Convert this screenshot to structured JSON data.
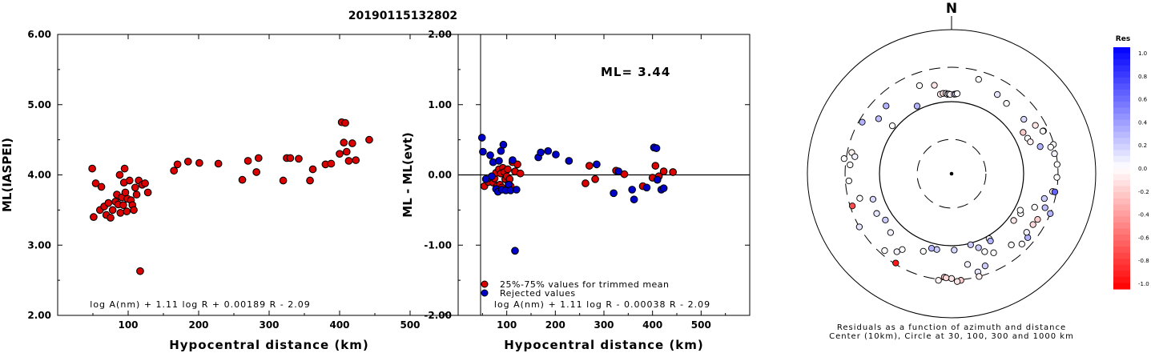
{
  "event_id": "20190115132802",
  "chart_data": [
    {
      "type": "scatter",
      "title": "",
      "xlabel": "Hypocentral distance (km)",
      "ylabel": "ML(IASPEI)",
      "xlim": [
        0,
        600
      ],
      "ylim": [
        2.0,
        6.0
      ],
      "xticks": [
        "100",
        "200",
        "300",
        "400",
        "500"
      ],
      "yticks": [
        "2.00",
        "3.00",
        "4.00",
        "5.00",
        "6.00"
      ],
      "formula": "log A(nm) + 1.11 log R + 0.00189 R - 2.09",
      "series": [
        {
          "color": "#dd0000",
          "points": [
            [
              49,
              4.09
            ],
            [
              51,
              3.4
            ],
            [
              54,
              3.88
            ],
            [
              60,
              3.5
            ],
            [
              62,
              3.83
            ],
            [
              66,
              3.55
            ],
            [
              69,
              3.43
            ],
            [
              72,
              3.6
            ],
            [
              75,
              3.39
            ],
            [
              78,
              3.5
            ],
            [
              82,
              3.62
            ],
            [
              84,
              3.72
            ],
            [
              86,
              3.58
            ],
            [
              88,
              4.0
            ],
            [
              89,
              3.46
            ],
            [
              91,
              3.68
            ],
            [
              93,
              3.57
            ],
            [
              94,
              3.89
            ],
            [
              95,
              4.09
            ],
            [
              96,
              3.75
            ],
            [
              98,
              3.48
            ],
            [
              99,
              3.66
            ],
            [
              102,
              3.92
            ],
            [
              104,
              3.64
            ],
            [
              106,
              3.57
            ],
            [
              108,
              3.5
            ],
            [
              110,
              3.82
            ],
            [
              112,
              3.72
            ],
            [
              115,
              3.92
            ],
            [
              117,
              2.63
            ],
            [
              120,
              3.86
            ],
            [
              124,
              3.88
            ],
            [
              128,
              3.75
            ],
            [
              165,
              4.06
            ],
            [
              170,
              4.15
            ],
            [
              185,
              4.19
            ],
            [
              201,
              4.17
            ],
            [
              228,
              4.16
            ],
            [
              262,
              3.93
            ],
            [
              270,
              4.2
            ],
            [
              282,
              4.04
            ],
            [
              285,
              4.24
            ],
            [
              320,
              3.92
            ],
            [
              325,
              4.24
            ],
            [
              330,
              4.24
            ],
            [
              342,
              4.23
            ],
            [
              358,
              3.92
            ],
            [
              362,
              4.08
            ],
            [
              380,
              4.15
            ],
            [
              388,
              4.16
            ],
            [
              400,
              4.3
            ],
            [
              403,
              4.75
            ],
            [
              406,
              4.46
            ],
            [
              408,
              4.74
            ],
            [
              410,
              4.33
            ],
            [
              413,
              4.2
            ],
            [
              418,
              4.45
            ],
            [
              423,
              4.21
            ],
            [
              442,
              4.5
            ]
          ]
        }
      ]
    },
    {
      "type": "scatter",
      "title": "",
      "xlabel": "Hypocentral distance (km)",
      "ylabel": "ML - ML(evt)",
      "xlim": [
        0,
        600
      ],
      "ylim": [
        -2.0,
        2.0
      ],
      "xticks": [
        "100",
        "200",
        "300",
        "400",
        "500"
      ],
      "yticks": [
        "-2.00",
        "-1.00",
        "0.00",
        "1.00",
        "2.00"
      ],
      "annotation": "ML= 3.44",
      "formula": "log A(nm) + 1.11 log R - 0.00038 R - 2.09",
      "legend": [
        {
          "label": "25%-75% values for trimmed mean",
          "color": "#dd0000"
        },
        {
          "label": "Rejected values",
          "color": "#0000cc"
        }
      ],
      "series": [
        {
          "name": "25%-75% values for trimmed mean",
          "color": "#dd0000",
          "points": [
            [
              54,
              -0.16
            ],
            [
              62,
              -0.1
            ],
            [
              68,
              -0.05
            ],
            [
              72,
              -0.11
            ],
            [
              75,
              -0.05
            ],
            [
              78,
              0.03
            ],
            [
              80,
              -0.16
            ],
            [
              84,
              0.08
            ],
            [
              86,
              -0.14
            ],
            [
              88,
              0.02
            ],
            [
              90,
              -0.18
            ],
            [
              92,
              0.1
            ],
            [
              95,
              0.04
            ],
            [
              97,
              -0.06
            ],
            [
              100,
              -0.02
            ],
            [
              102,
              0.08
            ],
            [
              104,
              -0.12
            ],
            [
              106,
              -0.06
            ],
            [
              108,
              -0.16
            ],
            [
              112,
              0.18
            ],
            [
              117,
              0.05
            ],
            [
              122,
              0.15
            ],
            [
              128,
              0.02
            ],
            [
              262,
              -0.12
            ],
            [
              270,
              0.13
            ],
            [
              282,
              -0.06
            ],
            [
              325,
              0.06
            ],
            [
              342,
              0.01
            ],
            [
              380,
              -0.16
            ],
            [
              400,
              -0.04
            ],
            [
              406,
              0.13
            ],
            [
              413,
              -0.02
            ],
            [
              423,
              0.05
            ],
            [
              442,
              0.04
            ]
          ]
        },
        {
          "name": "Rejected values",
          "color": "#0000cc",
          "points": [
            [
              49,
              0.53
            ],
            [
              51,
              0.33
            ],
            [
              57,
              -0.06
            ],
            [
              66,
              0.28
            ],
            [
              69,
              -0.02
            ],
            [
              72,
              0.18
            ],
            [
              78,
              -0.2
            ],
            [
              82,
              -0.24
            ],
            [
              84,
              0.2
            ],
            [
              88,
              0.34
            ],
            [
              90,
              -0.21
            ],
            [
              93,
              0.43
            ],
            [
              98,
              -0.22
            ],
            [
              104,
              -0.14
            ],
            [
              108,
              -0.22
            ],
            [
              112,
              0.21
            ],
            [
              117,
              -1.08
            ],
            [
              120,
              -0.21
            ],
            [
              165,
              0.25
            ],
            [
              170,
              0.32
            ],
            [
              185,
              0.34
            ],
            [
              201,
              0.29
            ],
            [
              228,
              0.2
            ],
            [
              285,
              0.15
            ],
            [
              320,
              -0.26
            ],
            [
              330,
              0.05
            ],
            [
              358,
              -0.21
            ],
            [
              362,
              -0.35
            ],
            [
              388,
              -0.18
            ],
            [
              403,
              0.39
            ],
            [
              408,
              0.38
            ],
            [
              410,
              -0.07
            ],
            [
              418,
              -0.21
            ],
            [
              423,
              -0.19
            ]
          ]
        }
      ]
    },
    {
      "type": "scatter",
      "subtype": "polar",
      "title": "",
      "north_label": "N",
      "caption1": "Residuals as a function of azimuth and distance",
      "caption2": "Center (10km), Circle at 30, 100, 300 and 1000 km",
      "rings_km": [
        10,
        30,
        100,
        300,
        1000
      ],
      "colorbar": {
        "title": "Res",
        "ticks": [
          "1.0",
          "0.8",
          "0.6",
          "0.4",
          "0.2",
          "0.0",
          "-0.2",
          "-0.4",
          "-0.6",
          "-0.8",
          "-1.0"
        ],
        "positive_color": "#0000ff",
        "zero_color": "#ffffff",
        "negative_color": "#ff0000"
      },
      "points_az_km_res": [
        [
          -20,
          200,
          0.0
        ],
        [
          -11,
          178,
          -0.1
        ],
        [
          -8,
          130,
          -0.1
        ],
        [
          -6,
          132,
          -0.1
        ],
        [
          -4,
          131,
          0.0
        ],
        [
          -3,
          127,
          0.0
        ],
        [
          -2,
          128,
          0.1
        ],
        [
          -1,
          126,
          -0.05
        ],
        [
          2,
          127,
          0.15
        ],
        [
          3,
          128,
          0.1
        ],
        [
          4,
          130,
          0.0
        ],
        [
          16,
          230,
          0.0
        ],
        [
          30,
          186,
          0.1
        ],
        [
          38,
          173,
          0.0
        ],
        [
          53,
          180,
          0.15
        ],
        [
          65,
          255,
          0.4
        ],
        [
          74,
          295,
          0.0
        ],
        [
          75,
          265,
          0.0
        ],
        [
          79,
          285,
          0.05
        ],
        [
          -27,
          113,
          0.3
        ],
        [
          -51,
          114,
          0.0
        ],
        [
          -53,
          185,
          0.25
        ],
        [
          -78,
          260,
          -0.05
        ],
        [
          -82,
          320,
          0.0
        ],
        [
          -85,
          259,
          0.0
        ],
        [
          -94,
          268,
          0.0
        ],
        [
          -105,
          208,
          0.0
        ],
        [
          -108,
          280,
          -0.7
        ],
        [
          -139,
          260,
          0.0
        ],
        [
          -145,
          210,
          0.05
        ],
        [
          -147,
          180,
          0.0
        ],
        [
          -148,
          290,
          -0.9
        ],
        [
          -160,
          140,
          0.0
        ],
        [
          -169,
          118,
          0.2
        ],
        [
          -173,
          310,
          -0.05
        ],
        [
          -176,
          275,
          -0.2
        ],
        [
          -180,
          285,
          -0.1
        ],
        [
          -177,
          280,
          -0.15
        ],
        [
          -185,
          306,
          -0.2
        ],
        [
          -183,
          315,
          -0.1
        ],
        [
          -195,
          258,
          0.1
        ],
        [
          -195,
          300,
          -0.05
        ],
        [
          -203,
          150,
          0.0
        ],
        [
          -208,
          175,
          0.0
        ],
        [
          -210,
          110,
          0.05
        ],
        [
          -233,
          120,
          -0.1
        ],
        [
          -240,
          128,
          0.0
        ],
        [
          -242,
          120,
          0.0
        ],
        [
          -255,
          215,
          0.2
        ],
        [
          -248,
          175,
          0.0
        ],
        [
          -287,
          193,
          0.3
        ],
        [
          -295,
          250,
          0.0
        ],
        [
          -300,
          220,
          -0.1
        ],
        [
          -300,
          140,
          -0.2
        ],
        [
          -295,
          146,
          0.0
        ],
        [
          -292,
          151,
          -0.05
        ],
        [
          -108,
          140,
          0.15
        ],
        [
          -125,
          132,
          0.2
        ],
        [
          -118,
          150,
          0.1
        ],
        [
          -200,
          124,
          0.2
        ],
        [
          -134,
          150,
          0.05
        ],
        [
          -44,
          203,
          0.3
        ],
        [
          -60,
          270,
          0.3
        ],
        [
          150,
          120,
          0.3
        ],
        [
          165,
          105,
          0.2
        ],
        [
          178,
          115,
          0.15
        ],
        [
          170,
          190,
          0.05
        ],
        [
          195,
          118,
          0.3
        ],
        [
          160,
          230,
          0.2
        ],
        [
          -230,
          240,
          0.3
        ],
        [
          -80,
          230,
          0.05
        ],
        [
          -260,
          265,
          -0.05
        ],
        [
          -120,
          300,
          0.1
        ],
        [
          110,
          240,
          0.25
        ],
        [
          122,
          215,
          -0.15
        ],
        [
          135,
          240,
          0.0
        ],
        [
          118,
          225,
          -0.2
        ],
        [
          140,
          195,
          0.0
        ],
        [
          128,
          210,
          0.05
        ],
        [
          100,
          285,
          0.6
        ],
        [
          112,
          300,
          0.3
        ],
        [
          92,
          290,
          0.0
        ],
        [
          85,
          295,
          0.0
        ]
      ]
    }
  ]
}
